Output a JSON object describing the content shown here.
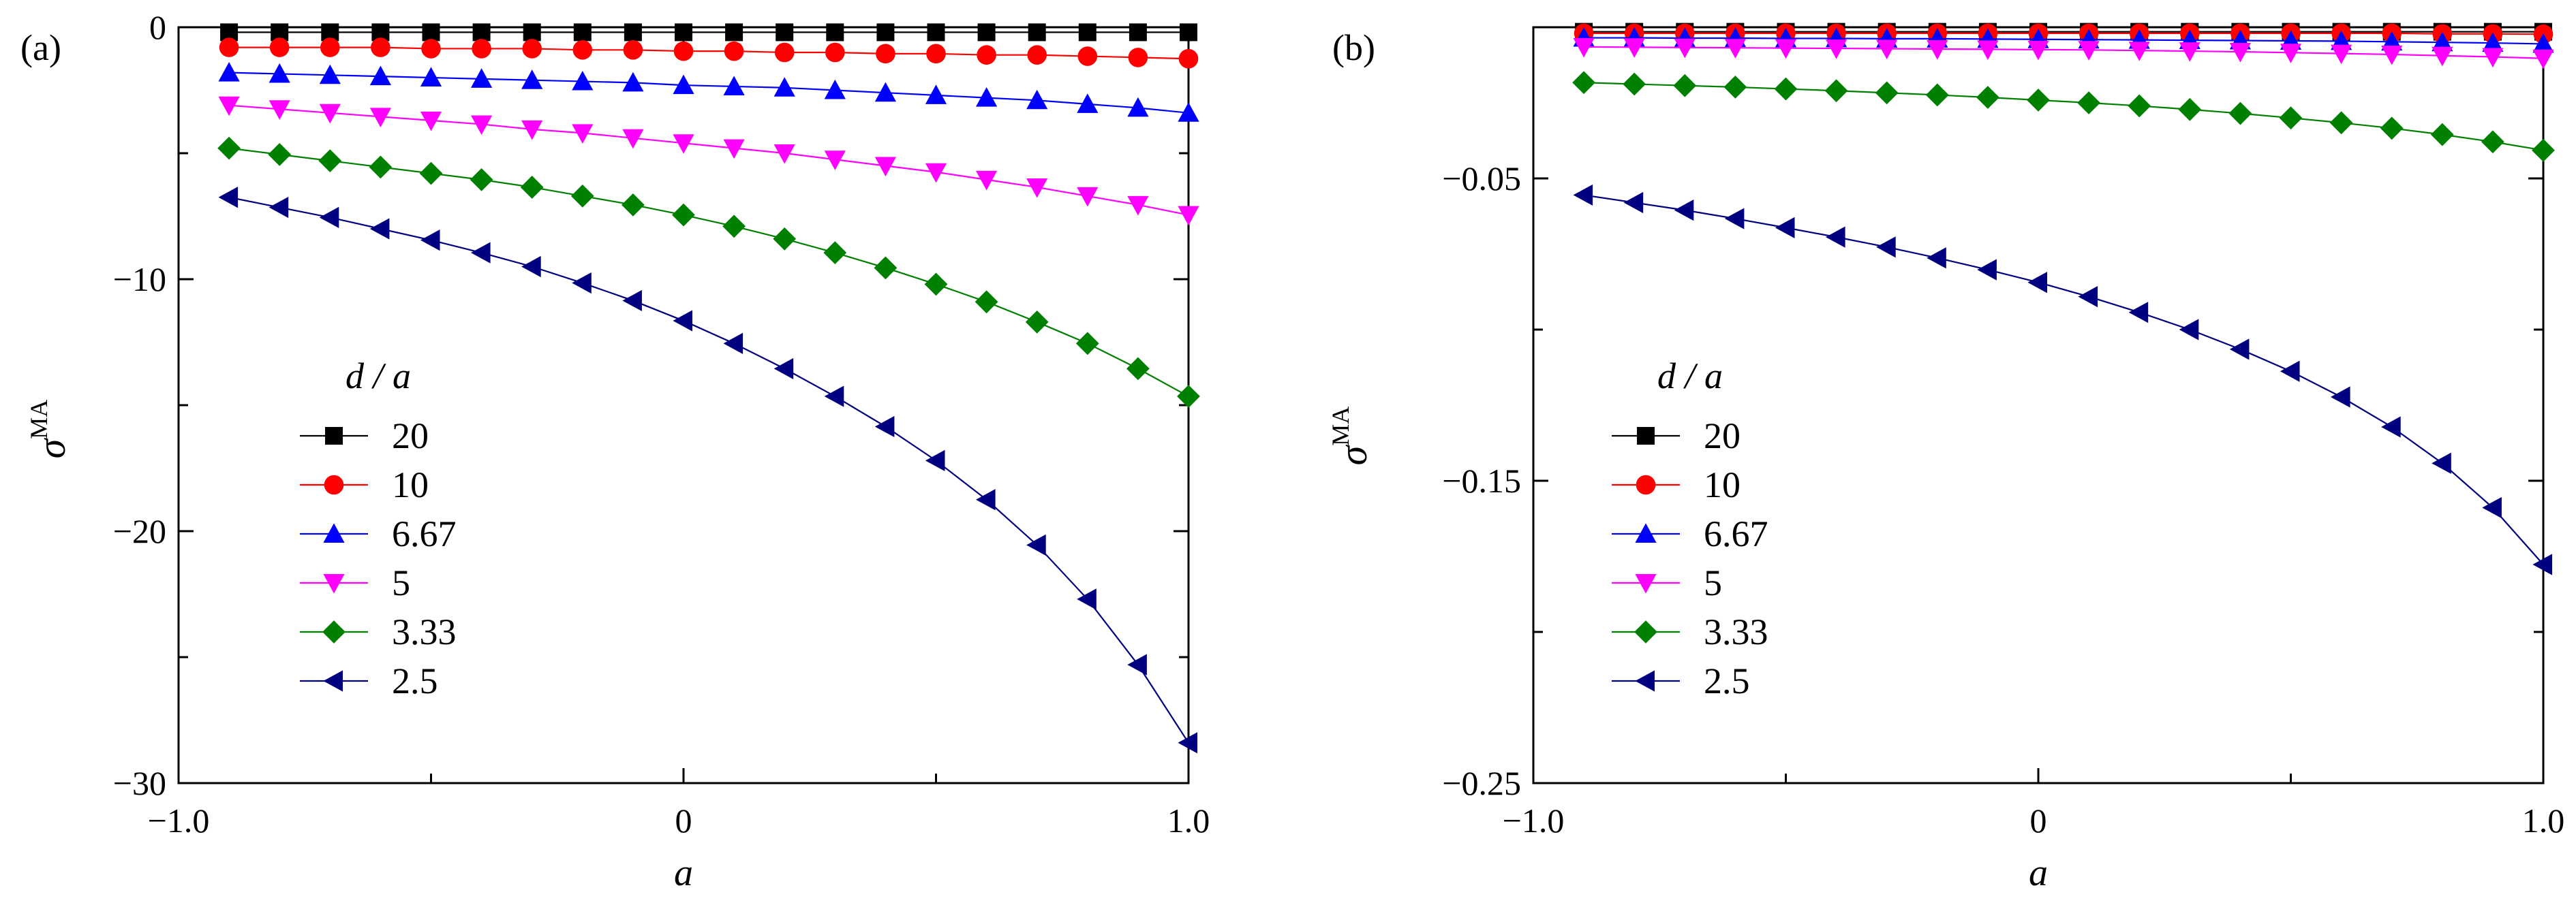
{
  "chart_data": [
    {
      "type": "line",
      "panel_label": "(a)",
      "xlabel": "a",
      "ylabel": "σ",
      "ylabel_superscript": "MA",
      "xlim": [
        -1.0,
        1.0
      ],
      "ylim": [
        -30,
        0
      ],
      "xticks": [
        -1.0,
        0,
        1.0
      ],
      "xtick_labels": [
        "−1.0",
        "0",
        "1.0"
      ],
      "yticks": [
        0,
        -10,
        -20,
        -30
      ],
      "ytick_labels": [
        "0",
        "−10",
        "−20",
        "−30"
      ],
      "grid": false,
      "legend_title": "d / a",
      "legend_position": "lower-left",
      "x": [
        -0.9,
        -0.8,
        -0.7,
        -0.6,
        -0.5,
        -0.4,
        -0.3,
        -0.2,
        -0.1,
        0.0,
        0.1,
        0.2,
        0.3,
        0.4,
        0.5,
        0.6,
        0.7,
        0.8,
        0.9,
        1.0
      ],
      "series": [
        {
          "name": "20",
          "color": "#000000",
          "marker": "square",
          "values": [
            -0.2,
            -0.2,
            -0.2,
            -0.2,
            -0.2,
            -0.2,
            -0.2,
            -0.2,
            -0.2,
            -0.2,
            -0.2,
            -0.2,
            -0.2,
            -0.2,
            -0.2,
            -0.2,
            -0.2,
            -0.2,
            -0.2,
            -0.2
          ]
        },
        {
          "name": "10",
          "color": "#ff0000",
          "marker": "circle",
          "values": [
            -0.8,
            -0.8,
            -0.8,
            -0.8,
            -0.85,
            -0.85,
            -0.85,
            -0.9,
            -0.9,
            -0.95,
            -0.95,
            -1.0,
            -1.0,
            -1.05,
            -1.05,
            -1.1,
            -1.1,
            -1.15,
            -1.2,
            -1.25
          ]
        },
        {
          "name": "6.67",
          "color": "#0000ff",
          "marker": "triangle-up",
          "values": [
            -1.8,
            -1.85,
            -1.9,
            -1.95,
            -2.0,
            -2.05,
            -2.1,
            -2.15,
            -2.2,
            -2.3,
            -2.35,
            -2.4,
            -2.5,
            -2.6,
            -2.7,
            -2.8,
            -2.9,
            -3.05,
            -3.2,
            -3.4
          ]
        },
        {
          "name": "5",
          "color": "#ff00ff",
          "marker": "triangle-down",
          "values": [
            -3.1,
            -3.25,
            -3.4,
            -3.55,
            -3.7,
            -3.85,
            -4.05,
            -4.2,
            -4.4,
            -4.6,
            -4.8,
            -5.0,
            -5.25,
            -5.5,
            -5.75,
            -6.05,
            -6.35,
            -6.7,
            -7.05,
            -7.45
          ]
        },
        {
          "name": "3.33",
          "color": "#008000",
          "marker": "diamond",
          "values": [
            -4.8,
            -5.05,
            -5.3,
            -5.55,
            -5.8,
            -6.05,
            -6.35,
            -6.7,
            -7.05,
            -7.45,
            -7.9,
            -8.4,
            -8.95,
            -9.55,
            -10.2,
            -10.9,
            -11.7,
            -12.55,
            -13.55,
            -14.65
          ]
        },
        {
          "name": "2.5",
          "color": "#000080",
          "marker": "triangle-left",
          "values": [
            -6.75,
            -7.15,
            -7.55,
            -8.0,
            -8.45,
            -8.95,
            -9.5,
            -10.15,
            -10.85,
            -11.65,
            -12.55,
            -13.55,
            -14.65,
            -15.85,
            -17.2,
            -18.75,
            -20.55,
            -22.7,
            -25.3,
            -28.4
          ]
        }
      ]
    },
    {
      "type": "line",
      "panel_label": "(b)",
      "xlabel": "a",
      "ylabel": "σ",
      "ylabel_superscript": "MA",
      "xlim": [
        -1.0,
        1.0
      ],
      "ylim": [
        -0.25,
        0.0
      ],
      "xticks": [
        -1.0,
        0,
        1.0
      ],
      "xtick_labels": [
        "−1.0",
        "0",
        "1.0"
      ],
      "yticks": [
        -0.05,
        -0.15,
        -0.25
      ],
      "ytick_labels": [
        "−0.05",
        "−0.15",
        "−0.25"
      ],
      "minor_yticks": [
        -0.1,
        -0.2
      ],
      "grid": false,
      "legend_title": "d / a",
      "legend_position": "lower-left",
      "x": [
        -0.9,
        -0.8,
        -0.7,
        -0.6,
        -0.5,
        -0.4,
        -0.3,
        -0.2,
        -0.1,
        0.0,
        0.1,
        0.2,
        0.3,
        0.4,
        0.5,
        0.6,
        0.7,
        0.8,
        0.9,
        1.0
      ],
      "series": [
        {
          "name": "20",
          "color": "#000000",
          "marker": "square",
          "values": [
            -0.0015,
            -0.0015,
            -0.0015,
            -0.0015,
            -0.0015,
            -0.0015,
            -0.0015,
            -0.0015,
            -0.0015,
            -0.0015,
            -0.0015,
            -0.0015,
            -0.0015,
            -0.0015,
            -0.0015,
            -0.0015,
            -0.0015,
            -0.0015,
            -0.0015,
            -0.0015
          ]
        },
        {
          "name": "10",
          "color": "#ff0000",
          "marker": "circle",
          "values": [
            -0.002,
            -0.002,
            -0.002,
            -0.002,
            -0.002,
            -0.002,
            -0.002,
            -0.002,
            -0.002,
            -0.002,
            -0.002,
            -0.002,
            -0.002,
            -0.002,
            -0.002,
            -0.002,
            -0.002,
            -0.0022,
            -0.0022,
            -0.0023
          ]
        },
        {
          "name": "6.67",
          "color": "#0000ff",
          "marker": "triangle-up",
          "values": [
            -0.0035,
            -0.0035,
            -0.0036,
            -0.0036,
            -0.0037,
            -0.0037,
            -0.0038,
            -0.0038,
            -0.0039,
            -0.004,
            -0.0041,
            -0.0042,
            -0.0043,
            -0.0044,
            -0.0045,
            -0.0046,
            -0.0048,
            -0.005,
            -0.0052,
            -0.0055
          ]
        },
        {
          "name": "5",
          "color": "#ff00ff",
          "marker": "triangle-down",
          "values": [
            -0.0065,
            -0.0066,
            -0.0067,
            -0.0068,
            -0.0069,
            -0.007,
            -0.0071,
            -0.0072,
            -0.0073,
            -0.0074,
            -0.0075,
            -0.0077,
            -0.0079,
            -0.0081,
            -0.0084,
            -0.0087,
            -0.009,
            -0.0094,
            -0.0098,
            -0.0103
          ]
        },
        {
          "name": "3.33",
          "color": "#008000",
          "marker": "diamond",
          "values": [
            -0.0183,
            -0.0188,
            -0.0193,
            -0.0198,
            -0.0204,
            -0.021,
            -0.0217,
            -0.0224,
            -0.0232,
            -0.0241,
            -0.025,
            -0.026,
            -0.0272,
            -0.0285,
            -0.03,
            -0.0316,
            -0.0334,
            -0.0355,
            -0.0379,
            -0.0407
          ]
        },
        {
          "name": "2.5",
          "color": "#000080",
          "marker": "triangle-left",
          "values": [
            -0.0555,
            -0.058,
            -0.0605,
            -0.0633,
            -0.0663,
            -0.0694,
            -0.0727,
            -0.0763,
            -0.0802,
            -0.0844,
            -0.0891,
            -0.0943,
            -0.1,
            -0.1065,
            -0.1138,
            -0.1223,
            -0.1322,
            -0.1442,
            -0.1589,
            -0.1777
          ]
        }
      ]
    }
  ]
}
